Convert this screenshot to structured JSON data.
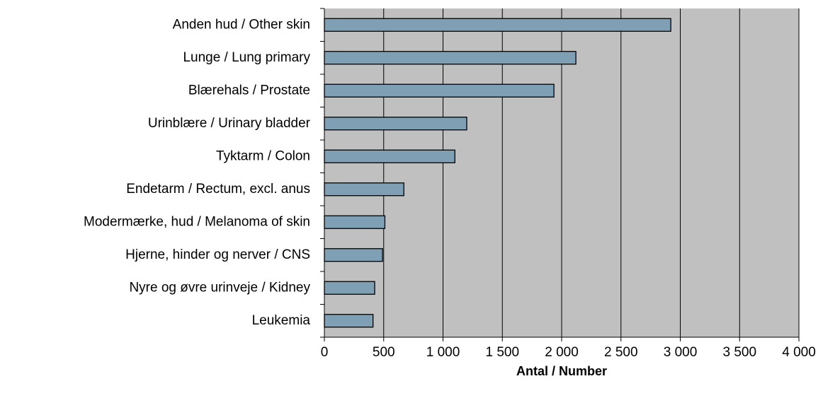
{
  "chart_data": {
    "type": "barh",
    "categories": [
      "Anden hud / Other skin",
      "Lunge / Lung primary",
      "Blærehals / Prostate",
      "Urinblære / Urinary bladder",
      "Tyktarm / Colon",
      "Endetarm / Rectum, excl. anus",
      "Modermærke, hud / Melanoma of skin",
      "Hjerne, hinder og nerver / CNS",
      "Nyre og øvre urinveje / Kidney",
      "Leukemia"
    ],
    "values": [
      2920,
      2120,
      1935,
      1200,
      1100,
      670,
      510,
      490,
      424,
      410
    ],
    "color": "#7f9fb5",
    "xlabel": "Antal / Number",
    "xlim": [
      0,
      4000
    ],
    "xticks": [
      0,
      500,
      {
        "value": 1000,
        "label": "1 000"
      },
      {
        "value": 1500,
        "label": "1 500"
      },
      {
        "value": 2000,
        "label": "2 000"
      },
      {
        "value": 2500,
        "label": "2 500"
      },
      {
        "value": 3000,
        "label": "3 000"
      },
      {
        "value": 3500,
        "label": "3 500"
      },
      {
        "value": 4000,
        "label": "4 000"
      }
    ],
    "grid": true
  }
}
